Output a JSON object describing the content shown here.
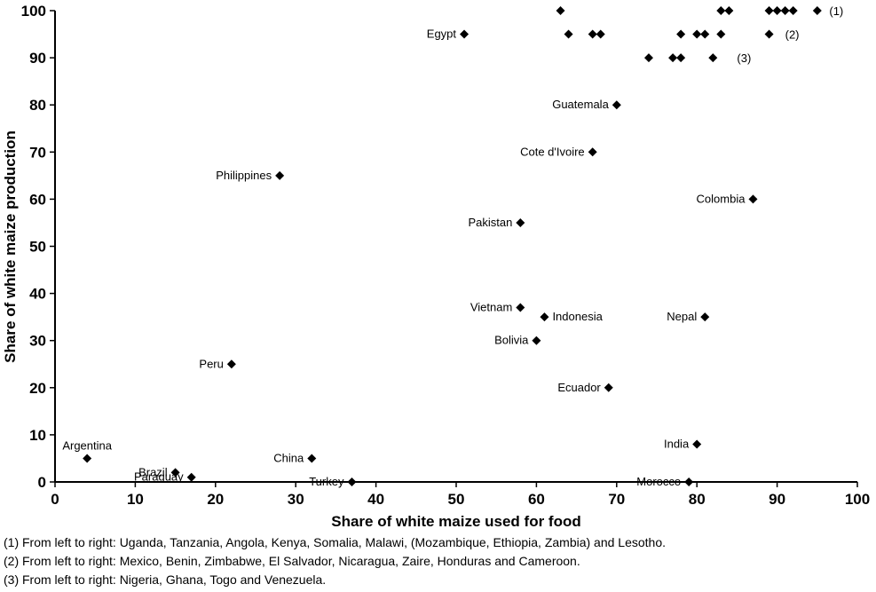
{
  "chart_data": {
    "type": "scatter",
    "title": "",
    "xlabel": "Share of white maize used for food",
    "ylabel": "Share of white maize production",
    "xlim": [
      0,
      100
    ],
    "ylim": [
      0,
      100
    ],
    "xticks": [
      0,
      10,
      20,
      30,
      40,
      50,
      60,
      70,
      80,
      90,
      100
    ],
    "yticks": [
      0,
      10,
      20,
      30,
      40,
      50,
      60,
      70,
      80,
      90,
      100
    ],
    "grid": false,
    "legend": "none",
    "marker": "diamond",
    "marker_color": "#000000",
    "points": [
      {
        "country": "Argentina",
        "x": 4,
        "y": 5,
        "label": "Argentina",
        "label_pos": "above"
      },
      {
        "country": "Brazil",
        "x": 15,
        "y": 2,
        "label": "Brazil",
        "label_pos": "left"
      },
      {
        "country": "Paraguay",
        "x": 17,
        "y": 1,
        "label": "Paraguay",
        "label_pos": "left"
      },
      {
        "country": "Peru",
        "x": 22,
        "y": 25,
        "label": "Peru",
        "label_pos": "left"
      },
      {
        "country": "Philippines",
        "x": 28,
        "y": 65,
        "label": "Philippines",
        "label_pos": "left"
      },
      {
        "country": "China",
        "x": 32,
        "y": 5,
        "label": "China",
        "label_pos": "left"
      },
      {
        "country": "Turkey",
        "x": 37,
        "y": 0,
        "label": "Turkey",
        "label_pos": "left"
      },
      {
        "country": "Egypt",
        "x": 51,
        "y": 95,
        "label": "Egypt",
        "label_pos": "left"
      },
      {
        "country": "Pakistan",
        "x": 58,
        "y": 55,
        "label": "Pakistan",
        "label_pos": "left"
      },
      {
        "country": "Vietnam",
        "x": 58,
        "y": 37,
        "label": "Vietnam",
        "label_pos": "left"
      },
      {
        "country": "Bolivia",
        "x": 60,
        "y": 30,
        "label": "Bolivia",
        "label_pos": "left"
      },
      {
        "country": "Indonesia",
        "x": 61,
        "y": 35,
        "label": "Indonesia",
        "label_pos": "right"
      },
      {
        "country": "Cote d'Ivoire",
        "x": 67,
        "y": 70,
        "label": "Cote d'Ivoire",
        "label_pos": "left"
      },
      {
        "country": "Ecuador",
        "x": 69,
        "y": 20,
        "label": "Ecuador",
        "label_pos": "left"
      },
      {
        "country": "Guatemala",
        "x": 70,
        "y": 80,
        "label": "Guatemala",
        "label_pos": "left"
      },
      {
        "country": "Morocco",
        "x": 79,
        "y": 0,
        "label": "Morocco",
        "label_pos": "left"
      },
      {
        "country": "India",
        "x": 80,
        "y": 8,
        "label": "India",
        "label_pos": "left"
      },
      {
        "country": "Nepal",
        "x": 81,
        "y": 35,
        "label": "Nepal",
        "label_pos": "left"
      },
      {
        "country": "Colombia",
        "x": 87,
        "y": 60,
        "label": "Colombia",
        "label_pos": "left"
      },
      {
        "country": "Uganda",
        "x": 63,
        "y": 100
      },
      {
        "country": "Tanzania",
        "x": 83,
        "y": 100
      },
      {
        "country": "Angola",
        "x": 84,
        "y": 100
      },
      {
        "country": "Kenya",
        "x": 89,
        "y": 100
      },
      {
        "country": "Somalia",
        "x": 90,
        "y": 100
      },
      {
        "country": "Malawi",
        "x": 91,
        "y": 100
      },
      {
        "country": "Mozambique, Ethiopia, Zambia",
        "x": 92,
        "y": 100
      },
      {
        "country": "Lesotho",
        "x": 95,
        "y": 100
      },
      {
        "country": "Mexico",
        "x": 64,
        "y": 95
      },
      {
        "country": "Benin",
        "x": 67,
        "y": 95
      },
      {
        "country": "Zimbabwe",
        "x": 68,
        "y": 95
      },
      {
        "country": "El Salvador",
        "x": 78,
        "y": 95
      },
      {
        "country": "Nicaragua",
        "x": 80,
        "y": 95
      },
      {
        "country": "Zaire",
        "x": 81,
        "y": 95
      },
      {
        "country": "Honduras",
        "x": 83,
        "y": 95
      },
      {
        "country": "Cameroon",
        "x": 89,
        "y": 95
      },
      {
        "country": "Nigeria",
        "x": 74,
        "y": 90
      },
      {
        "country": "Ghana",
        "x": 77,
        "y": 90
      },
      {
        "country": "Togo",
        "x": 78,
        "y": 90
      },
      {
        "country": "Venezuela",
        "x": 82,
        "y": 90
      }
    ],
    "annotations": [
      {
        "text": "(1)",
        "x": 96.5,
        "y": 100
      },
      {
        "text": "(2)",
        "x": 91,
        "y": 95
      },
      {
        "text": "(3)",
        "x": 85,
        "y": 90
      }
    ]
  },
  "footnotes": [
    "(1) From left to right: Uganda, Tanzania, Angola, Kenya, Somalia, Malawi, (Mozambique, Ethiopia, Zambia) and Lesotho.",
    "(2) From left to right: Mexico, Benin, Zimbabwe, El Salvador, Nicaragua, Zaire, Honduras and Cameroon.",
    "(3) From left to right: Nigeria, Ghana, Togo and Venezuela."
  ]
}
